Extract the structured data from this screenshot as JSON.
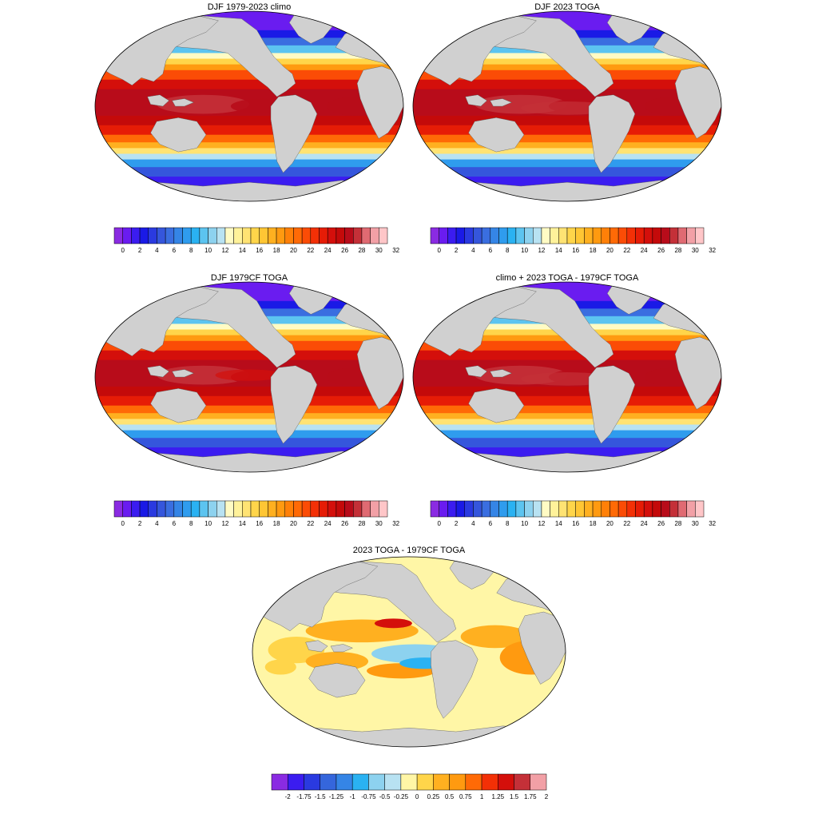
{
  "panels": [
    {
      "id": "p1",
      "title": "DJF 1979-2023 climo",
      "field": "sst",
      "variant": 0
    },
    {
      "id": "p2",
      "title": "DJF 2023 TOGA",
      "field": "sst",
      "variant": 1
    },
    {
      "id": "p3",
      "title": "DJF 1979CF TOGA",
      "field": "sst",
      "variant": 2
    },
    {
      "id": "p4",
      "title": "climo + 2023 TOGA - 1979CF TOGA",
      "field": "sst",
      "variant": 3
    },
    {
      "id": "p5",
      "title": "2023 TOGA - 1979CF TOGA",
      "field": "diff",
      "variant": 4
    }
  ],
  "colorbars": {
    "sst": {
      "labels": [
        "0",
        "2",
        "4",
        "6",
        "8",
        "10",
        "12",
        "14",
        "16",
        "18",
        "20",
        "22",
        "24",
        "26",
        "28",
        "30",
        "32"
      ],
      "colors": [
        "#8a2be2",
        "#6a1cf0",
        "#3b1cf0",
        "#1a1ae6",
        "#2a3ae0",
        "#3556dc",
        "#3a6ee0",
        "#3585e6",
        "#2f9cee",
        "#2ab2f2",
        "#5cc4f0",
        "#8dd2ef",
        "#b8e2f2",
        "#fffbc4",
        "#fff29a",
        "#ffe373",
        "#ffd54a",
        "#ffc634",
        "#ffb020",
        "#ff9a10",
        "#ff8008",
        "#ff6a06",
        "#fb4c06",
        "#f33006",
        "#e61c06",
        "#d40f0b",
        "#c40a0a",
        "#b80c1a",
        "#c43038",
        "#e06a72",
        "#f2a0a6",
        "#ffc6c8"
      ]
    },
    "diff": {
      "labels": [
        "-2",
        "-1.75",
        "-1.5",
        "-1.25",
        "-1",
        "-0.75",
        "-0.5",
        "-0.25",
        "0",
        "0.25",
        "0.5",
        "0.75",
        "1",
        "1.25",
        "1.5",
        "1.75",
        "2"
      ],
      "colors": [
        "#8a2be2",
        "#3b1cf0",
        "#2a3ae0",
        "#3566dc",
        "#3585e6",
        "#2ab2f2",
        "#8dd2ef",
        "#b8e2f2",
        "#fff6a6",
        "#ffd54a",
        "#ffb020",
        "#ff9a10",
        "#ff6a06",
        "#f33006",
        "#d40f0b",
        "#c43038",
        "#f2a0a6"
      ]
    }
  },
  "map_colors": {
    "land": "#d0d0d0",
    "diff_background": "#fff6a6"
  }
}
